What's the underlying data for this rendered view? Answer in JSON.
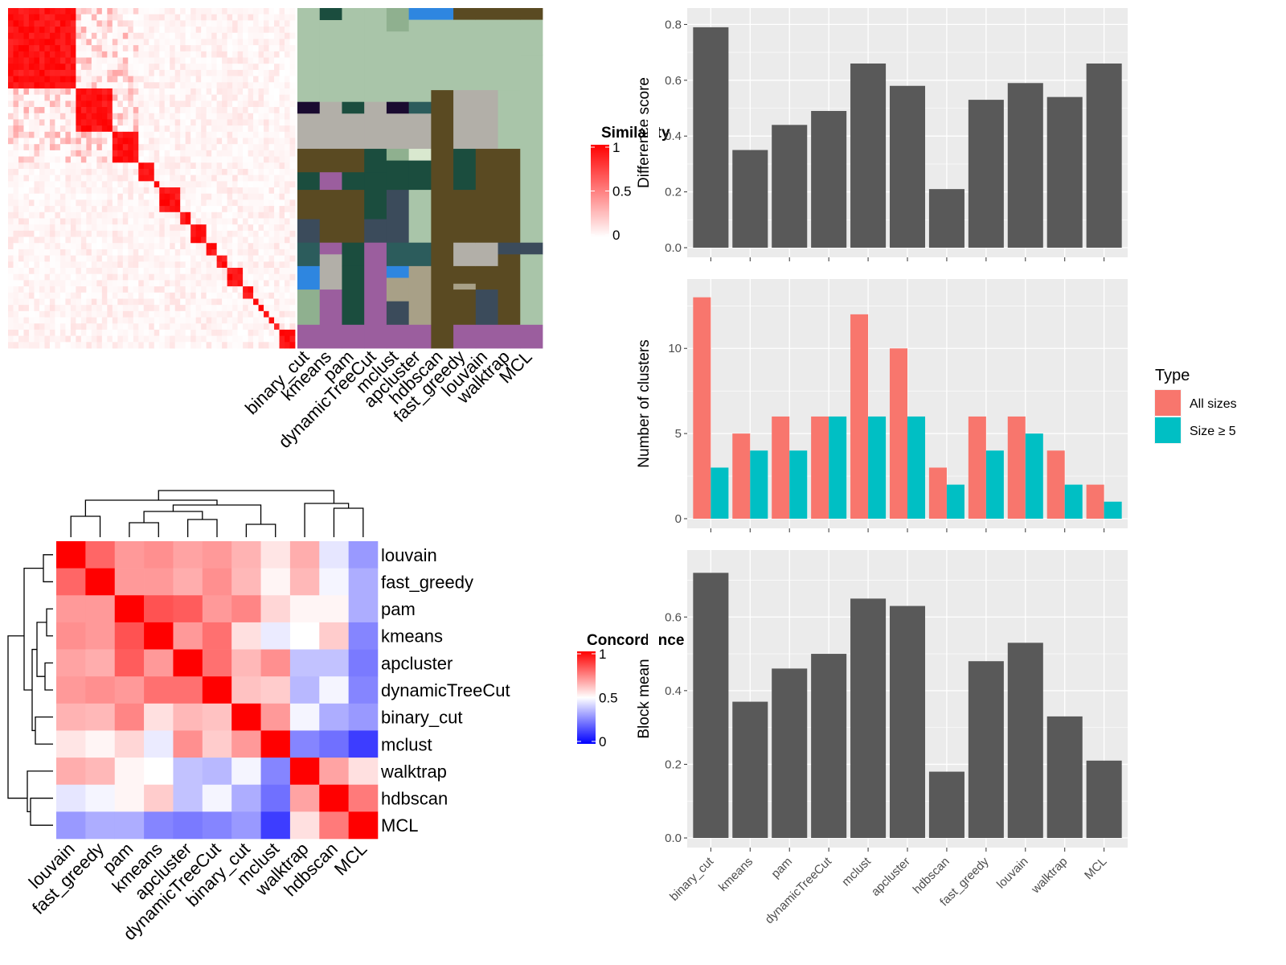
{
  "methods": [
    "binary_cut",
    "kmeans",
    "pam",
    "dynamicTreeCut",
    "mclust",
    "apcluster",
    "hdbscan",
    "fast_greedy",
    "louvain",
    "walktrap",
    "MCL"
  ],
  "colors": {
    "panel_bg": "#EBEBEB",
    "grid": "#FFFFFF",
    "bar": "#595959",
    "all_sizes": "#F8766D",
    "size5": "#00BFC4",
    "heat_high": "#FF0000",
    "heat_mid": "#FFFFFF",
    "heat_low": "#0000FF"
  },
  "similarity_heatmap": {
    "legend_title": "Similarity",
    "legend_ticks": [
      "1",
      "0.5",
      "0"
    ],
    "column_labels": [
      "binary_cut",
      "kmeans",
      "pam",
      "dynamicTreeCut",
      "mclust",
      "apcluster",
      "hdbscan",
      "fast_greedy",
      "louvain",
      "walktrap",
      "MCL"
    ],
    "blocks": [
      13,
      7,
      5,
      3,
      1,
      4,
      2,
      3,
      2,
      2,
      3,
      2,
      1,
      1,
      1,
      1,
      1,
      3
    ]
  },
  "cluster_assignment_palette": [
    "#A9C5A9",
    "#1B4D3E",
    "#5A4A22",
    "#B2AFA8",
    "#9B5E9E",
    "#2E86E0",
    "#3B4B5B",
    "#1A0B30",
    "#8FB08F",
    "#2C5C5C",
    "#A8A087",
    "#D9E8CF"
  ],
  "concordance_heatmap": {
    "legend_title": "Concordance",
    "legend_ticks": [
      "1",
      "0.5",
      "0"
    ],
    "labels": [
      "louvain",
      "fast_greedy",
      "pam",
      "kmeans",
      "apcluster",
      "dynamicTreeCut",
      "binary_cut",
      "mclust",
      "walktrap",
      "hdbscan",
      "MCL"
    ],
    "matrix": [
      [
        1.0,
        0.8,
        0.7,
        0.72,
        0.68,
        0.7,
        0.65,
        0.55,
        0.66,
        0.45,
        0.3
      ],
      [
        0.8,
        1.0,
        0.7,
        0.7,
        0.66,
        0.72,
        0.64,
        0.52,
        0.64,
        0.48,
        0.34
      ],
      [
        0.7,
        0.7,
        1.0,
        0.84,
        0.82,
        0.7,
        0.74,
        0.58,
        0.52,
        0.52,
        0.34
      ],
      [
        0.72,
        0.7,
        0.84,
        1.0,
        0.7,
        0.78,
        0.56,
        0.46,
        0.5,
        0.6,
        0.26
      ],
      [
        0.68,
        0.66,
        0.82,
        0.7,
        1.0,
        0.78,
        0.64,
        0.72,
        0.38,
        0.38,
        0.24
      ],
      [
        0.7,
        0.72,
        0.7,
        0.78,
        0.78,
        1.0,
        0.62,
        0.6,
        0.36,
        0.48,
        0.26
      ],
      [
        0.65,
        0.64,
        0.74,
        0.56,
        0.64,
        0.62,
        1.0,
        0.7,
        0.48,
        0.34,
        0.3
      ],
      [
        0.55,
        0.52,
        0.58,
        0.46,
        0.72,
        0.6,
        0.7,
        1.0,
        0.26,
        0.22,
        0.12
      ],
      [
        0.66,
        0.64,
        0.52,
        0.5,
        0.38,
        0.36,
        0.48,
        0.26,
        1.0,
        0.68,
        0.56
      ],
      [
        0.45,
        0.48,
        0.52,
        0.6,
        0.38,
        0.48,
        0.34,
        0.22,
        0.68,
        1.0,
        0.76
      ],
      [
        0.3,
        0.34,
        0.34,
        0.26,
        0.24,
        0.26,
        0.3,
        0.12,
        0.56,
        0.76,
        1.0
      ]
    ]
  },
  "chart_data": [
    {
      "type": "bar",
      "categories": [
        "binary_cut",
        "kmeans",
        "pam",
        "dynamicTreeCut",
        "mclust",
        "apcluster",
        "hdbscan",
        "fast_greedy",
        "louvain",
        "walktrap",
        "MCL"
      ],
      "values": [
        0.79,
        0.35,
        0.44,
        0.49,
        0.66,
        0.58,
        0.21,
        0.53,
        0.59,
        0.54,
        0.66
      ],
      "ylabel": "Difference score",
      "ylim": [
        0,
        0.83
      ],
      "yticks": [
        "0.0",
        "0.2",
        "0.4",
        "0.6",
        "0.8"
      ],
      "grid": true
    },
    {
      "type": "bar",
      "categories": [
        "binary_cut",
        "kmeans",
        "pam",
        "dynamicTreeCut",
        "mclust",
        "apcluster",
        "hdbscan",
        "fast_greedy",
        "louvain",
        "walktrap",
        "MCL"
      ],
      "series": [
        {
          "name": "All sizes",
          "values": [
            13,
            5,
            6,
            6,
            12,
            10,
            3,
            6,
            6,
            4,
            2
          ]
        },
        {
          "name": "Size ≥ 5",
          "values": [
            3,
            4,
            4,
            6,
            6,
            6,
            2,
            4,
            5,
            2,
            1
          ]
        }
      ],
      "ylabel": "Number of clusters",
      "ylim": [
        0,
        13.6
      ],
      "yticks": [
        "0",
        "5",
        "10"
      ],
      "legend_title": "Type",
      "legend_position": "right",
      "grid": true
    },
    {
      "type": "bar",
      "categories": [
        "binary_cut",
        "kmeans",
        "pam",
        "dynamicTreeCut",
        "mclust",
        "apcluster",
        "hdbscan",
        "fast_greedy",
        "louvain",
        "walktrap",
        "MCL"
      ],
      "values": [
        0.72,
        0.37,
        0.46,
        0.5,
        0.65,
        0.63,
        0.18,
        0.48,
        0.53,
        0.33,
        0.21
      ],
      "ylabel": "Block mean",
      "ylim": [
        0,
        0.76
      ],
      "yticks": [
        "0.0",
        "0.2",
        "0.4",
        "0.6"
      ],
      "grid": true
    }
  ]
}
